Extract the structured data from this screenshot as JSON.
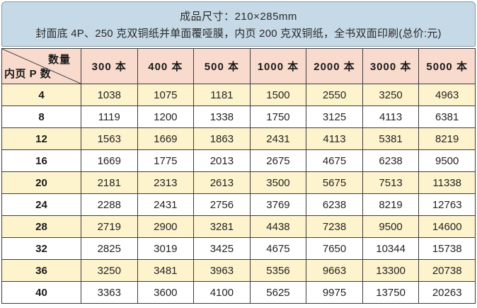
{
  "banner": {
    "line1": "成品尺寸：210×285mm",
    "line2": "封面底 4P、250 克双铜纸并单面覆哑膜，内页 200 克双铜纸，全书双面印刷(总价:元)"
  },
  "table": {
    "corner": {
      "top_right_label": "数量",
      "bottom_left_label": "内页 P 数"
    },
    "columns": [
      "300 本",
      "400 本",
      "500 本",
      "1000 本",
      "2000 本",
      "3000 本",
      "5000 本"
    ],
    "rows": [
      {
        "pages": "4",
        "values": [
          "1038",
          "1075",
          "1181",
          "1500",
          "2550",
          "3250",
          "4963"
        ]
      },
      {
        "pages": "8",
        "values": [
          "1119",
          "1200",
          "1338",
          "1750",
          "3125",
          "4113",
          "6381"
        ]
      },
      {
        "pages": "12",
        "values": [
          "1563",
          "1669",
          "1863",
          "2431",
          "4113",
          "5381",
          "8219"
        ]
      },
      {
        "pages": "16",
        "values": [
          "1669",
          "1775",
          "2013",
          "2675",
          "4675",
          "6238",
          "9500"
        ]
      },
      {
        "pages": "20",
        "values": [
          "2181",
          "2313",
          "2613",
          "3500",
          "5675",
          "7513",
          "11338"
        ]
      },
      {
        "pages": "24",
        "values": [
          "2288",
          "2431",
          "2756",
          "3769",
          "6238",
          "8219",
          "12763"
        ]
      },
      {
        "pages": "28",
        "values": [
          "2719",
          "2900",
          "3281",
          "4438",
          "7238",
          "9500",
          "14600"
        ]
      },
      {
        "pages": "32",
        "values": [
          "2825",
          "3019",
          "3425",
          "4675",
          "7650",
          "10344",
          "15738"
        ]
      },
      {
        "pages": "36",
        "values": [
          "3250",
          "3481",
          "3963",
          "5356",
          "9663",
          "13300",
          "20738"
        ]
      },
      {
        "pages": "40",
        "values": [
          "3363",
          "3600",
          "4100",
          "5625",
          "9975",
          "13750",
          "20263"
        ]
      }
    ]
  },
  "colors": {
    "banner_bg": "#c5d9e6",
    "banner_border": "#8d9aa4",
    "header_row_bg": "#f9dbce",
    "row_alt_bg": "#fdf3cd",
    "row_bg": "#ffffff",
    "grid_line": "#3c3c3c"
  }
}
